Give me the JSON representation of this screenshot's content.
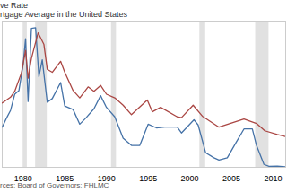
{
  "chart_data": {
    "type": "line",
    "legend": "top-left",
    "caption": "rces: Board of Governors; FHLMC",
    "x": null,
    "xlim": [
      1977.5,
      2011.5
    ],
    "xticks": [
      1980,
      1985,
      1990,
      1995,
      2000,
      2005,
      2010
    ],
    "ylim": [
      0,
      20
    ],
    "tick_labels": "x",
    "recessions": [
      [
        1980.0,
        1980.5
      ],
      [
        1981.5,
        1982.9
      ],
      [
        1990.6,
        1991.2
      ],
      [
        2001.2,
        2001.9
      ],
      [
        2007.9,
        2009.5
      ]
    ],
    "series": [
      {
        "name": "ve Rate",
        "color": "#4572a7",
        "x": [
          1977.5,
          1978.0,
          1978.5,
          1979.0,
          1979.5,
          1980.0,
          1980.3,
          1980.6,
          1981.0,
          1981.5,
          1981.9,
          1982.3,
          1982.9,
          1983.5,
          1984.5,
          1985.0,
          1986.0,
          1986.8,
          1987.5,
          1988.5,
          1989.3,
          1990.0,
          1991.0,
          1992.0,
          1993.0,
          1994.0,
          1995.0,
          1996.0,
          1997.0,
          1998.5,
          1999.0,
          2000.5,
          2001.0,
          2001.9,
          2002.9,
          2003.5,
          2004.5,
          2005.5,
          2006.5,
          2007.5,
          2008.0,
          2008.9,
          2009.5,
          2010.5,
          2011.5
        ],
        "values": [
          5.5,
          6.7,
          7.8,
          10.0,
          10.5,
          14.0,
          17.6,
          9.0,
          19.0,
          19.1,
          12.4,
          14.7,
          8.9,
          9.4,
          11.6,
          8.4,
          7.9,
          5.9,
          6.7,
          8.0,
          9.8,
          8.2,
          6.9,
          4.0,
          3.0,
          3.0,
          5.9,
          5.4,
          5.5,
          5.5,
          4.7,
          6.5,
          5.8,
          2.0,
          1.3,
          1.0,
          1.3,
          3.3,
          5.25,
          5.25,
          3.0,
          0.4,
          0.15,
          0.18,
          0.08
        ]
      },
      {
        "name": "rtgage Average in the United States",
        "color": "#aa4643",
        "x": [
          1977.5,
          1978.5,
          1979.0,
          1979.8,
          1980.3,
          1980.6,
          1981.0,
          1981.8,
          1982.5,
          1982.9,
          1983.5,
          1984.5,
          1985.0,
          1986.0,
          1986.8,
          1987.8,
          1988.5,
          1989.3,
          1990.0,
          1991.0,
          1992.0,
          1993.0,
          1994.9,
          1995.5,
          1996.5,
          1998.5,
          1999.0,
          2000.4,
          2001.5,
          2003.5,
          2006.5,
          2008.0,
          2009.0,
          2010.5,
          2011.5
        ],
        "values": [
          8.8,
          9.6,
          10.4,
          12.9,
          16.0,
          12.2,
          14.9,
          18.4,
          16.8,
          13.4,
          13.0,
          14.5,
          13.0,
          10.5,
          9.5,
          11.0,
          10.4,
          11.2,
          10.0,
          9.5,
          8.5,
          7.2,
          9.2,
          7.6,
          8.2,
          6.9,
          6.8,
          8.5,
          7.0,
          5.5,
          6.6,
          6.0,
          5.0,
          4.5,
          4.2
        ]
      }
    ]
  }
}
